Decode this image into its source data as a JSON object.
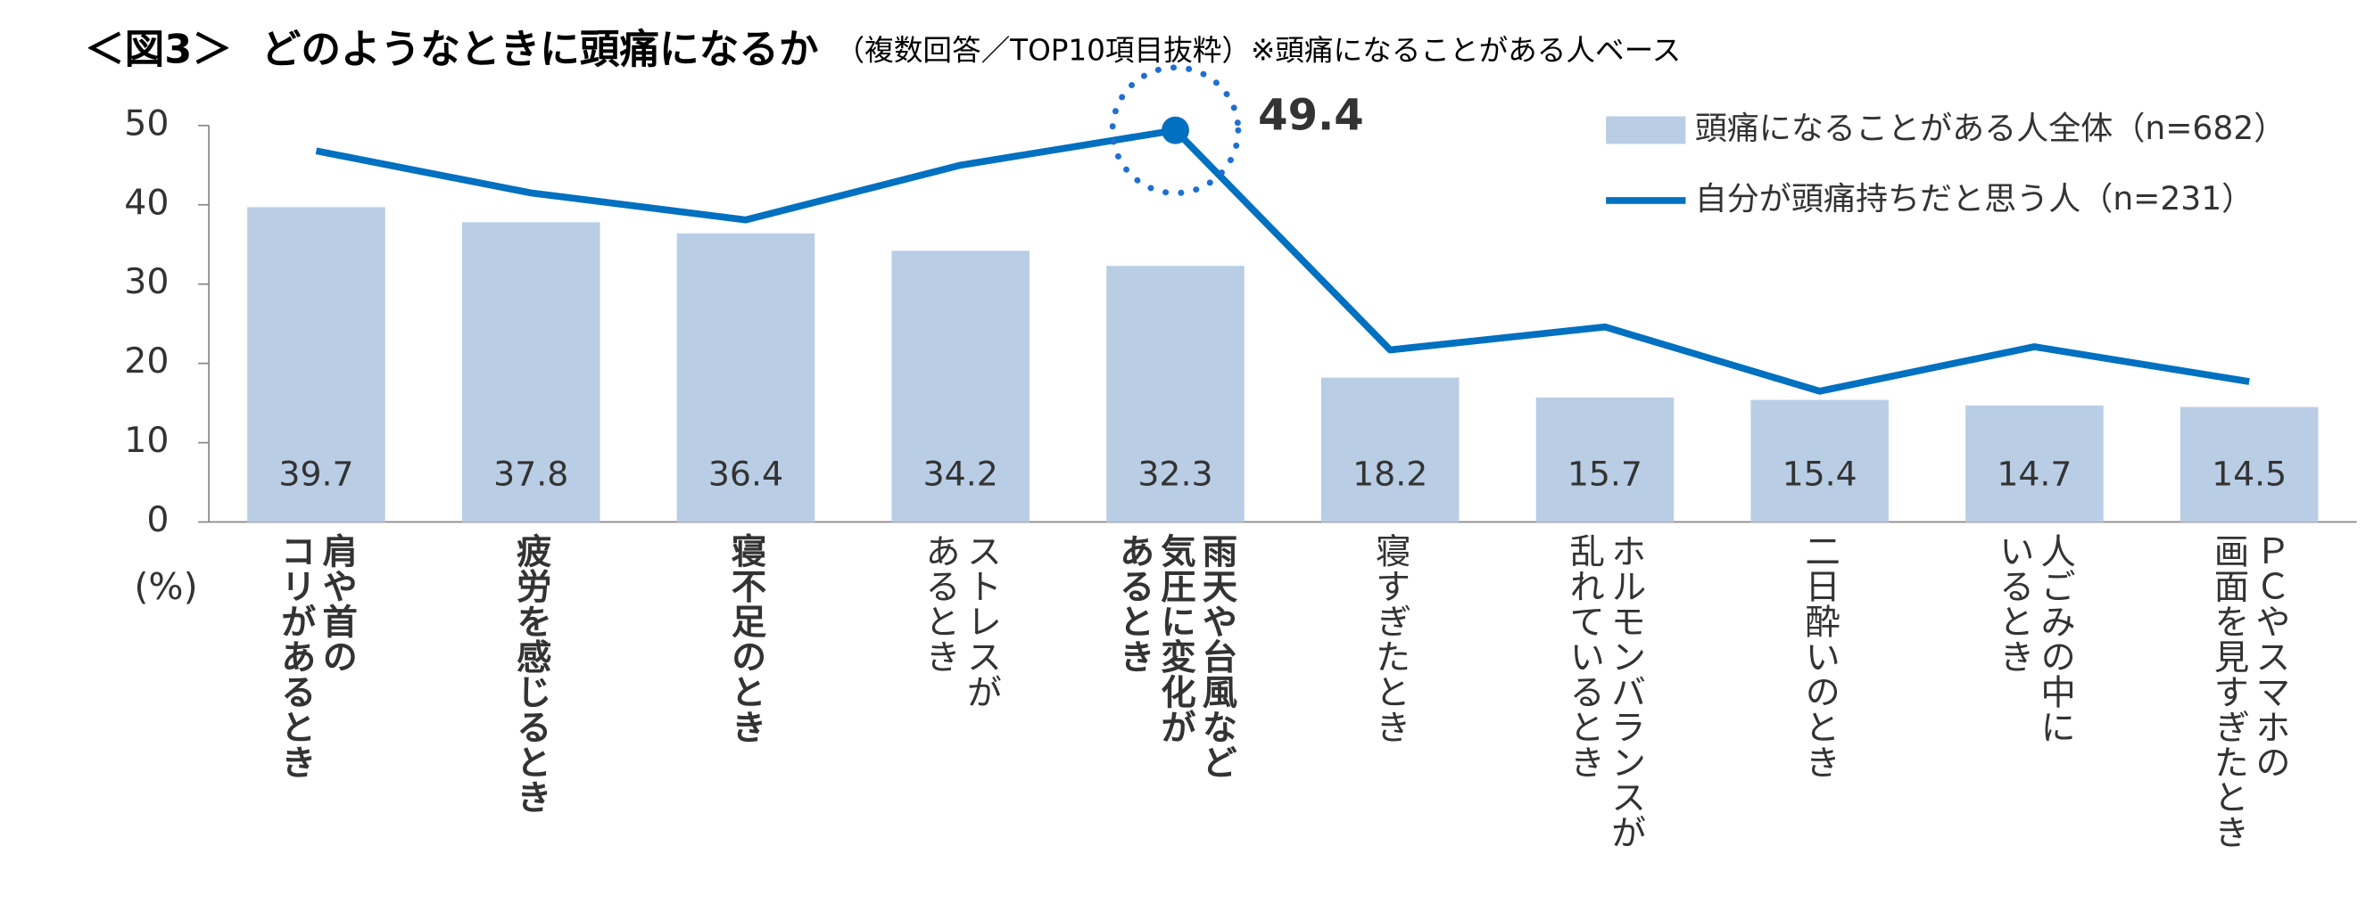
{
  "chart_data": {
    "type": "bar_line",
    "title": "＜図3＞",
    "subtitle": "どのようなときに頭痛になるか",
    "note": "（複数回答／TOP10項目抜粋）※頭痛になることがある人ベース",
    "y_unit": "(%)",
    "categories": [
      [
        "肩や首の",
        "コリがあるとき"
      ],
      [
        "疲労を感じるとき"
      ],
      [
        "寝不足のとき"
      ],
      [
        "ストレスが",
        "あるとき"
      ],
      [
        "雨天や台風など",
        "気圧に変化が",
        "あるとき"
      ],
      [
        "寝すぎたとき"
      ],
      [
        "ホルモンバランスが",
        "乱れているとき"
      ],
      [
        "二日酔いのとき"
      ],
      [
        "人ごみの中に",
        "いるとき"
      ],
      [
        "ＰＣやスマホの",
        "画面を見すぎたとき"
      ]
    ],
    "bold_categories": [
      true,
      true,
      true,
      false,
      true,
      false,
      false,
      false,
      false,
      false
    ],
    "series": [
      {
        "name": "頭痛になることがある人全体（n=682）",
        "kind": "bar",
        "color": "#b9cde5",
        "values": [
          39.7,
          37.8,
          36.4,
          34.2,
          32.3,
          18.2,
          15.7,
          15.4,
          14.7,
          14.5
        ]
      },
      {
        "name": "自分が頭痛持ちだと思う人（n=231）",
        "kind": "line",
        "color": "#0070c0",
        "values": [
          46.8,
          41.5,
          38.1,
          45.0,
          49.4,
          21.7,
          24.6,
          16.5,
          22.1,
          17.7
        ]
      }
    ],
    "highlight_index": 4,
    "highlight_color": "#1f6fd1",
    "ylim": [
      0,
      50
    ],
    "yticks": [
      0,
      10,
      20,
      30,
      40,
      50
    ]
  }
}
